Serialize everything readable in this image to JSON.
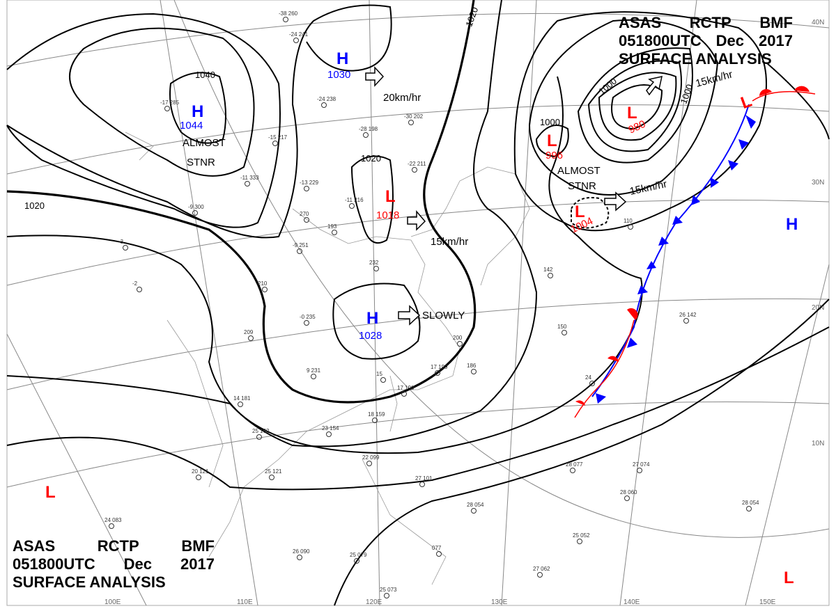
{
  "title": {
    "line1": [
      "ASAS",
      "RCTP",
      "BMF"
    ],
    "line2": [
      "051800UTC",
      "Dec",
      "2017"
    ],
    "line3": "SURFACE ANALYSIS"
  },
  "colors": {
    "high": "#0000ff",
    "low": "#ff0000",
    "isobar": "#000000",
    "grid": "#888888",
    "cold_front": "#0000ff",
    "warm_front": "#ff0000"
  },
  "grid_labels": {
    "lat": [
      "40N",
      "30N",
      "20N",
      "10N"
    ],
    "lon": [
      "100E",
      "110E",
      "120E",
      "130E",
      "140E",
      "150E"
    ]
  },
  "centers": [
    {
      "type": "H",
      "value": "1044"
    },
    {
      "type": "H",
      "value": "1030"
    },
    {
      "type": "L",
      "value": "1018"
    },
    {
      "type": "H",
      "value": "1028"
    },
    {
      "type": "L",
      "value": "996"
    },
    {
      "type": "L",
      "value": "980"
    },
    {
      "type": "L",
      "value": "1004"
    },
    {
      "type": "L",
      "value": ""
    },
    {
      "type": "L",
      "value": ""
    },
    {
      "type": "L",
      "value": ""
    }
  ],
  "isobar_labels": [
    "1040",
    "1020",
    "1020",
    "1020",
    "1000",
    "1000",
    "1000"
  ],
  "movements": [
    "20km/hr",
    "15km/hr",
    "SLOWLY",
    "15km/hr",
    "15km/hr"
  ],
  "stationary": [
    "ALMOST",
    "STNR",
    "ALMOST",
    "STNR"
  ],
  "stations": [
    "-38 260",
    "-24 241",
    "-24 238",
    "-30 202",
    "-28 198",
    "-22 211",
    "-17 285",
    "-15 217",
    "-11 333",
    "-13 229",
    "-9 300",
    "270",
    "-9 251",
    "193",
    "-11 216",
    "-3",
    "-2",
    "210",
    "-0 235",
    "209",
    "9 231",
    "14 181",
    "15",
    "18 159",
    "17 190",
    "17 199",
    "186",
    "200",
    "232",
    "142",
    "150",
    "26 142",
    "24",
    "22 099",
    "27 101",
    "28 054",
    "28 077",
    "27 074",
    "28 060",
    "28 054",
    "25 052",
    "27 062",
    "26 090",
    "25 079",
    "25 073",
    "077",
    "24 083",
    "20 121",
    "25 121",
    "25 162",
    "23 154",
    "110"
  ]
}
